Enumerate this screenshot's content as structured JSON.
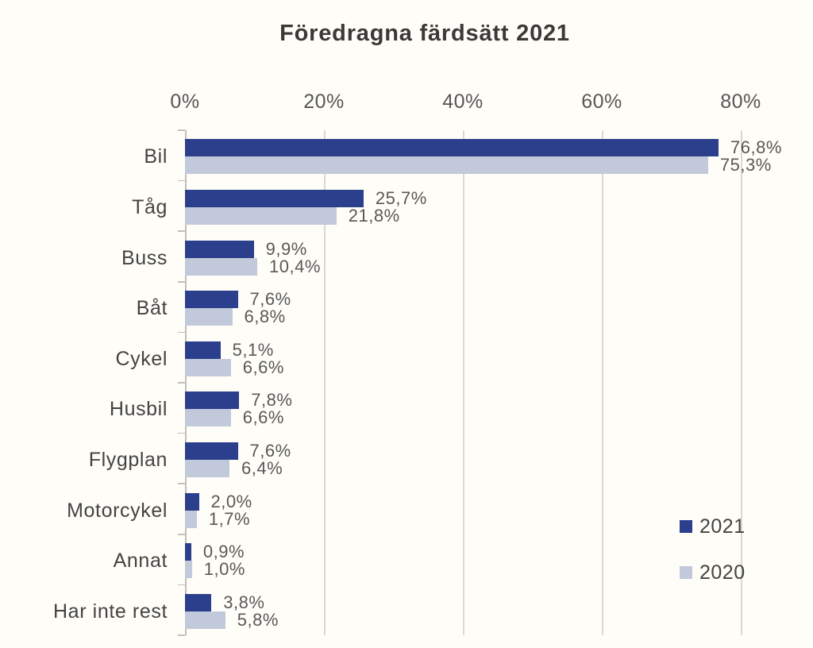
{
  "chart_data": {
    "type": "bar",
    "orientation": "horizontal",
    "title": "Föredragna färdsätt 2021",
    "categories": [
      "Bil",
      "Tåg",
      "Buss",
      "Båt",
      "Cykel",
      "Husbil",
      "Flygplan",
      "Motorcykel",
      "Annat",
      "Har inte rest"
    ],
    "series": [
      {
        "name": "2021",
        "color": "#2B3F8C",
        "values": [
          76.8,
          25.7,
          9.9,
          7.6,
          5.1,
          7.8,
          7.6,
          2.0,
          0.9,
          3.8
        ],
        "value_labels": [
          "76,8%",
          "25,7%",
          "9,9%",
          "7,6%",
          "5,1%",
          "7,8%",
          "7,6%",
          "2,0%",
          "0,9%",
          "3,8%"
        ]
      },
      {
        "name": "2020",
        "color": "#C2C9DA",
        "values": [
          75.3,
          21.8,
          10.4,
          6.8,
          6.6,
          6.6,
          6.4,
          1.7,
          1.0,
          5.8
        ],
        "value_labels": [
          "75,3%",
          "21,8%",
          "10,4%",
          "6,8%",
          "6,6%",
          "6,6%",
          "6,4%",
          "1,7%",
          "1,0%",
          "5,8%"
        ]
      }
    ],
    "x_axis": {
      "position": "top",
      "min": 0,
      "max": 80,
      "step": 20,
      "unit": "%",
      "tick_labels": [
        "0%",
        "20%",
        "40%",
        "60%",
        "80%"
      ]
    },
    "legend": {
      "items": [
        "2021",
        "2020"
      ],
      "position": "right"
    },
    "grid": "vertical-only",
    "colors": {
      "background": "#FFFDF7",
      "gridline": "#D8D8D5",
      "axis": "#C0BFBC",
      "title_text": "#3B3838",
      "category_text": "#434343",
      "value_text": "#585858",
      "axis_label_text": "#565656"
    }
  }
}
